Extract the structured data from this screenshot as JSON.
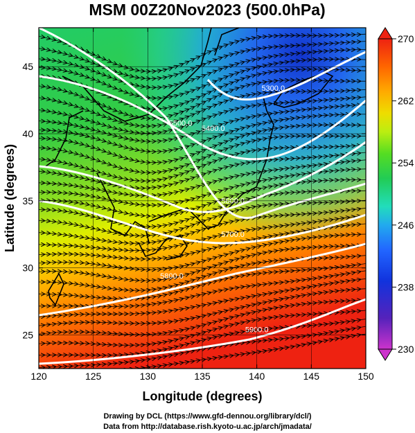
{
  "title": "MSM 00Z20Nov2023 (500.0hPa)",
  "x_axis_label": "Longitude (degrees)",
  "y_axis_label": "Latitude  (degrees)",
  "x_ticks": [
    {
      "value": 120,
      "label": "120"
    },
    {
      "value": 125,
      "label": "125"
    },
    {
      "value": 130,
      "label": "130"
    },
    {
      "value": 135,
      "label": "135"
    },
    {
      "value": 140,
      "label": "140"
    },
    {
      "value": 145,
      "label": "145"
    },
    {
      "value": 150,
      "label": "150"
    }
  ],
  "y_ticks": [
    {
      "value": 25,
      "label": "25"
    },
    {
      "value": 30,
      "label": "30"
    },
    {
      "value": 35,
      "label": "35"
    },
    {
      "value": 40,
      "label": "40"
    },
    {
      "value": 45,
      "label": "45"
    }
  ],
  "colorbar": {
    "min": 230,
    "max": 270,
    "labels": [
      "270",
      "262",
      "254",
      "246",
      "238",
      "230"
    ],
    "label_values": [
      270,
      262,
      254,
      246,
      238,
      230
    ],
    "colors": [
      "#cc33cc",
      "#5522bb",
      "#1133dd",
      "#2266ff",
      "#22aaee",
      "#22ddbb",
      "#22cc55",
      "#55dd22",
      "#bbee11",
      "#eedd00",
      "#ffaa00",
      "#ff6600",
      "#ee2211"
    ]
  },
  "contours": [
    {
      "label": "5300.0",
      "label_lon": 141.5,
      "label_lat": 43.2
    },
    {
      "label": "5400.0",
      "label_lon": 136.0,
      "label_lat": 40.2
    },
    {
      "label": "5500.0",
      "label_lon": 133.0,
      "label_lat": 40.6
    },
    {
      "label": "5600.0",
      "label_lon": 137.8,
      "label_lat": 34.8
    },
    {
      "label": "5700.0",
      "label_lon": 137.8,
      "label_lat": 32.3
    },
    {
      "label": "5800.0",
      "label_lon": 132.2,
      "label_lat": 29.2
    },
    {
      "label": "5900.0",
      "label_lon": 140.0,
      "label_lat": 25.2
    }
  ],
  "credits": [
    "Drawing by DCL (https://www.gfd-dennou.org/library/dcl/)",
    "Data from http://database.rish.kyoto-u.ac.jp/arch/jmadata/"
  ]
}
